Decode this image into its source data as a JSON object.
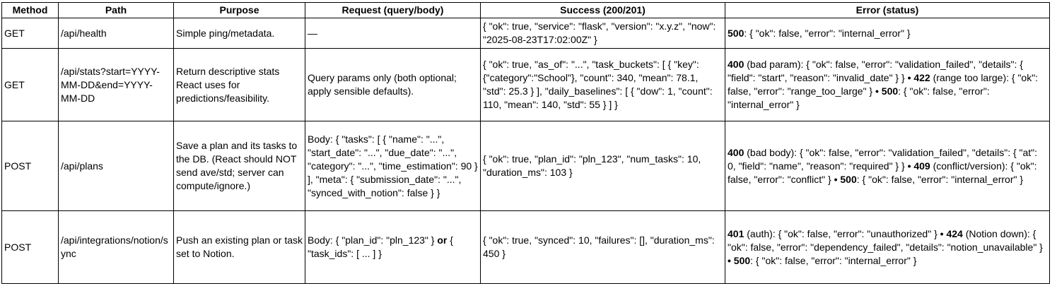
{
  "headers": [
    "Method",
    "Path",
    "Purpose",
    "Request (query/body)",
    "Success (200/201)",
    "Error (status)"
  ],
  "rows": [
    {
      "method": "GET",
      "path": "/api/health",
      "purpose": "Simple ping/metadata.",
      "request": [
        {
          "t": "—"
        }
      ],
      "success": "{ \"ok\": true, \"service\": \"flask\", \"version\": \"x.y.z\", \"now\": \"2025-08-23T17:02:00Z\" }",
      "error": [
        {
          "t": "500",
          "b": true
        },
        {
          "t": ": { \"ok\": false, \"error\": \"internal_error\" }"
        }
      ]
    },
    {
      "method": "GET",
      "path": "/api/stats?start=YYYY-MM-DD&end=YYYY-MM-DD",
      "purpose": "Return descriptive stats React uses for predictions/feasibility.",
      "request": [
        {
          "t": "Query params only (both optional; apply sensible defaults)."
        }
      ],
      "success": "{ \"ok\": true, \"as_of\": \"...\", \"task_buckets\": [ { \"key\": {\"category\":\"School\"}, \"count\": 340, \"mean\": 78.1, \"std\": 25.3 } ], \"daily_baselines\": [ { \"dow\": 1, \"count\": 110, \"mean\": 140, \"std\": 55 } ] }",
      "error": [
        {
          "t": "400",
          "b": true
        },
        {
          "t": " (bad param): { \"ok\": false, \"error\": \"validation_failed\", \"details\": { \"field\": \"start\", \"reason\": \"invalid_date\" } } "
        },
        {
          "t": "• 422",
          "b": true
        },
        {
          "t": " (range too large): { \"ok\": false, \"error\": \"range_too_large\" } "
        },
        {
          "t": "•",
          "b": true
        },
        {
          "t": " "
        },
        {
          "t": "500",
          "b": true
        },
        {
          "t": ": { \"ok\": false, \"error\": \"internal_error\" }"
        }
      ]
    },
    {
      "method": "POST",
      "path": "/api/plans",
      "purpose": "Save a plan and its tasks to the DB. (React should NOT send ave/std; server can compute/ignore.)",
      "request": [
        {
          "t": "Body: { \"tasks\": [ { \"name\": \"...\", \"start_date\": \"...\", \"due_date\": \"...\", \"category\": \"...\", \"time_estimation\": 90 } ], \"meta\": { \"submission_date\": \"...\", \"synced_with_notion\": false } }"
        }
      ],
      "success": "{ \"ok\": true, \"plan_id\": \"pln_123\", \"num_tasks\": 10, \"duration_ms\": 103 }",
      "error": [
        {
          "t": "400",
          "b": true
        },
        {
          "t": " (bad body): { \"ok\": false, \"error\": \"validation_failed\", \"details\": { \"at\": 0, \"field\": \"name\", \"reason\": \"required\" } } "
        },
        {
          "t": "• 409",
          "b": true
        },
        {
          "t": " (conflict/version): { \"ok\": false, \"error\": \"conflict\" } "
        },
        {
          "t": "• 500",
          "b": true
        },
        {
          "t": ": { \"ok\": false, \"error\": \"internal_error\" }"
        }
      ]
    },
    {
      "method": "POST",
      "path": "/api/integrations/notion/sync",
      "purpose": "Push an existing plan or task set to Notion.",
      "request": [
        {
          "t": "Body: { \"plan_id\": \"pln_123\" } "
        },
        {
          "t": "or",
          "b": true
        },
        {
          "t": " { \"task_ids\": [ ... ] }"
        }
      ],
      "success": "{ \"ok\": true, \"synced\": 10, \"failures\": [], \"duration_ms\": 450 }",
      "error": [
        {
          "t": "401",
          "b": true
        },
        {
          "t": " (auth): { \"ok\": false, \"error\": \"unauthorized\" } "
        },
        {
          "t": "• 424",
          "b": true
        },
        {
          "t": " (Notion down): { \"ok\": false, \"error\": \"dependency_failed\", \"details\": \"notion_unavailable\" } "
        },
        {
          "t": "• 500",
          "b": true
        },
        {
          "t": ": { \"ok\": false, \"error\": \"internal_error\" }"
        }
      ]
    }
  ]
}
